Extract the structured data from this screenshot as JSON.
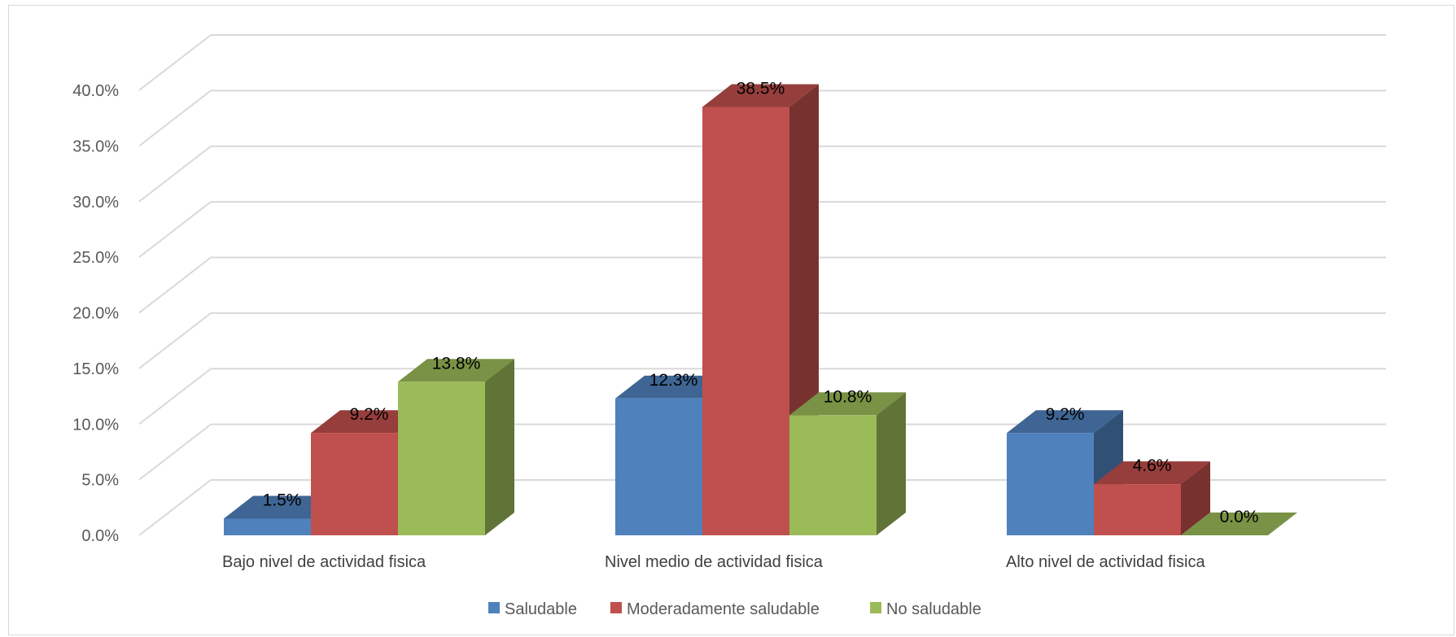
{
  "chart_data": {
    "type": "bar",
    "title": "",
    "xlabel": "",
    "ylabel": "",
    "ylim": [
      0,
      40
    ],
    "ytick_step": 5,
    "y_format": "percent_1dp",
    "grid": true,
    "legend": "bottom",
    "style": "3d-clustered-column",
    "categories": [
      "Bajo nivel de actividad fisica",
      "Nivel medio de actividad fisica",
      "Alto nivel de actividad fisica"
    ],
    "series": [
      {
        "name": "Saludable",
        "color": "#4F81BD",
        "values": [
          1.5,
          12.3,
          9.2
        ],
        "labels": [
          "1.5%",
          "12.3%",
          "9.2%"
        ]
      },
      {
        "name": "Moderadamente saludable",
        "color": "#C0504D",
        "values": [
          9.2,
          38.5,
          4.6
        ],
        "labels": [
          "9.2%",
          "38.5%",
          "4.6%"
        ]
      },
      {
        "name": "No saludable",
        "color": "#9BBB59",
        "values": [
          13.8,
          10.8,
          0.0
        ],
        "labels": [
          "13.8%",
          "10.8%",
          "0.0%"
        ]
      }
    ]
  }
}
